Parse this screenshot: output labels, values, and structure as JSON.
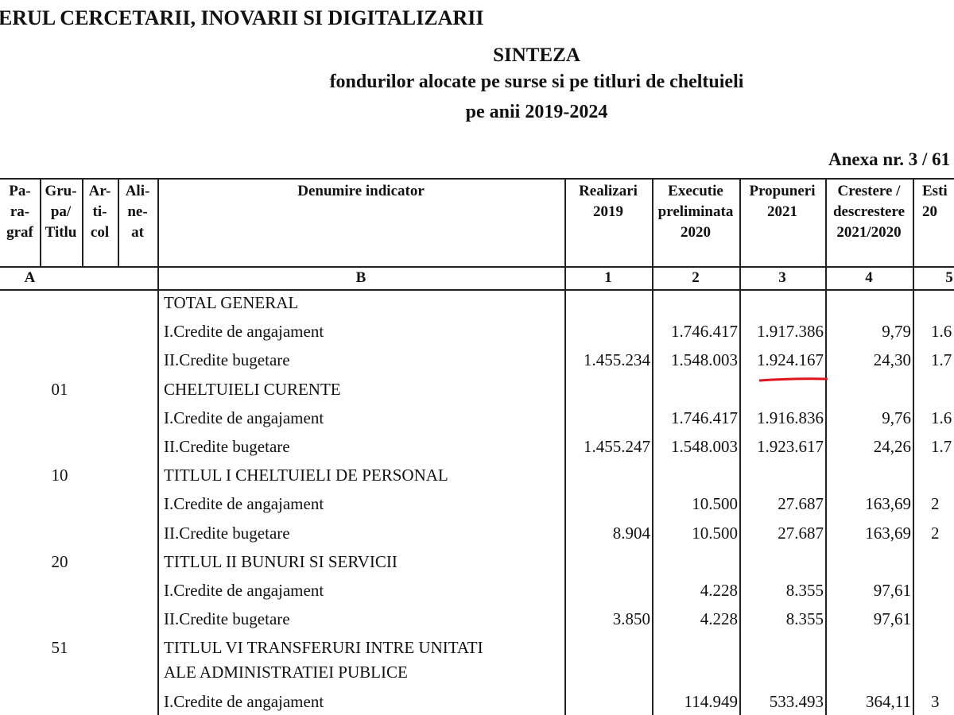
{
  "header": {
    "ministry": "ERUL CERCETARII, INOVARII SI DIGITALIZARII",
    "title": "SINTEZA",
    "subtitle": [
      "fondurilor alocate pe surse si pe titluri de cheltuieli",
      "pe anii 2019-2024"
    ],
    "annex": "Anexa nr. 3 / 61"
  },
  "table": {
    "columns": [
      [
        "Pa-",
        "ra-",
        "graf"
      ],
      [
        "Gru-",
        "pa/",
        "Titlu"
      ],
      [
        "Ar-",
        "ti-",
        "col"
      ],
      [
        "Ali-",
        "ne-",
        "at"
      ],
      [
        "Denumire indicator"
      ],
      [
        "Realizari",
        "2019"
      ],
      [
        "Executie",
        "preliminata",
        "2020"
      ],
      [
        "Propuneri",
        "2021"
      ],
      [
        "Crestere /",
        "descrestere",
        "2021/2020"
      ],
      [
        "Esti",
        "20"
      ]
    ],
    "index_row": [
      "A",
      "B",
      "1",
      "2",
      "3",
      "4",
      "5"
    ],
    "rows": [
      {
        "label": "TOTAL GENERAL"
      },
      {
        "label": "I.Credite de angajament",
        "values": [
          null,
          "1.746.417",
          "1.917.386",
          "9,79",
          "1.6"
        ]
      },
      {
        "label": "II.Credite bugetare",
        "values": [
          "1.455.234",
          "1.548.003",
          "1.924.167",
          "24,30",
          "1.7"
        ]
      },
      {
        "code": "01",
        "label": "CHELTUIELI CURENTE"
      },
      {
        "label": "I.Credite de angajament",
        "values": [
          null,
          "1.746.417",
          "1.916.836",
          "9,76",
          "1.6"
        ]
      },
      {
        "label": "II.Credite bugetare",
        "values": [
          "1.455.247",
          "1.548.003",
          "1.923.617",
          "24,26",
          "1.7"
        ]
      },
      {
        "code": "10",
        "label": "TITLUL I CHELTUIELI DE PERSONAL"
      },
      {
        "label": "I.Credite de angajament",
        "values": [
          null,
          "10.500",
          "27.687",
          "163,69",
          "2"
        ]
      },
      {
        "label": "II.Credite bugetare",
        "values": [
          "8.904",
          "10.500",
          "27.687",
          "163,69",
          "2"
        ]
      },
      {
        "code": "20",
        "label": "TITLUL II BUNURI SI SERVICII"
      },
      {
        "label": "I.Credite de angajament",
        "values": [
          null,
          "4.228",
          "8.355",
          "97,61",
          null
        ]
      },
      {
        "label": "II.Credite bugetare",
        "values": [
          "3.850",
          "4.228",
          "8.355",
          "97,61",
          null
        ]
      },
      {
        "code": "51",
        "label": "TITLUL VI TRANSFERURI INTRE UNITATI"
      },
      {
        "label": "ALE ADMINISTRATIEI PUBLICE"
      },
      {
        "label": "I.Credite de angajament",
        "values": [
          null,
          "114.949",
          "533.493",
          "364,11",
          "3"
        ]
      }
    ]
  }
}
